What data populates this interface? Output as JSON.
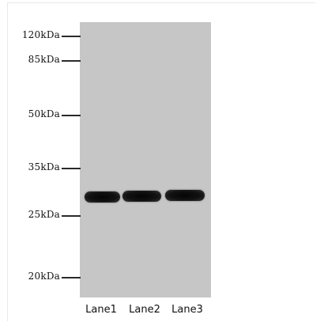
{
  "markers": [
    {
      "label": "120kDa"
    },
    {
      "label": "85kDa"
    },
    {
      "label": "50kDa"
    },
    {
      "label": "35kDa"
    },
    {
      "label": "25kDa"
    },
    {
      "label": "20kDa"
    }
  ],
  "lanes": [
    {
      "label": "Lane1"
    },
    {
      "label": "Lane2"
    },
    {
      "label": "Lane3"
    }
  ]
}
